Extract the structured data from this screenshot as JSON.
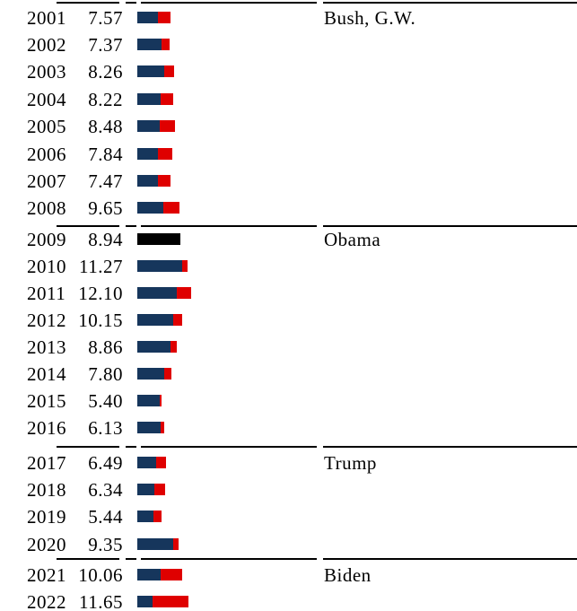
{
  "chart_data": {
    "type": "bar",
    "orientation": "horizontal",
    "title": "",
    "xlabel": "",
    "ylabel": "",
    "legend": "none",
    "grid": "off",
    "value_range_estimate": [
      0,
      12.1
    ],
    "categories": [
      "2001",
      "2002",
      "2003",
      "2004",
      "2005",
      "2006",
      "2007",
      "2008",
      "2009",
      "2010",
      "2011",
      "2012",
      "2013",
      "2014",
      "2015",
      "2016",
      "2017",
      "2018",
      "2019",
      "2020",
      "2021",
      "2022"
    ],
    "totals": [
      7.57,
      7.37,
      8.26,
      8.22,
      8.48,
      7.84,
      7.47,
      9.65,
      8.94,
      11.27,
      12.1,
      10.15,
      8.86,
      7.8,
      5.4,
      6.13,
      6.49,
      6.34,
      5.44,
      9.35,
      10.06,
      11.65
    ],
    "rows": [
      {
        "year": "2001",
        "value": "7.57",
        "blue": 4.65,
        "red": 2.92,
        "president": "Bush, G.W."
      },
      {
        "year": "2002",
        "value": "7.37",
        "blue": 5.55,
        "red": 1.82
      },
      {
        "year": "2003",
        "value": "8.26",
        "blue": 6.05,
        "red": 2.21
      },
      {
        "year": "2004",
        "value": "8.22",
        "blue": 5.35,
        "red": 2.87
      },
      {
        "year": "2005",
        "value": "8.48",
        "blue": 5.0,
        "red": 3.48
      },
      {
        "year": "2006",
        "value": "7.84",
        "blue": 4.6,
        "red": 3.24
      },
      {
        "year": "2007",
        "value": "7.47",
        "blue": 4.65,
        "red": 2.82
      },
      {
        "year": "2008",
        "value": "9.65",
        "blue": 5.85,
        "red": 3.8
      },
      {
        "year": "2009",
        "value": "8.94",
        "black": 9.8,
        "president": "Obama"
      },
      {
        "year": "2010",
        "value": "11.27",
        "blue": 10.2,
        "red": 1.07
      },
      {
        "year": "2011",
        "value": "12.10",
        "blue": 8.95,
        "red": 3.15
      },
      {
        "year": "2012",
        "value": "10.15",
        "blue": 8.2,
        "red": 1.95
      },
      {
        "year": "2013",
        "value": "8.86",
        "blue": 7.4,
        "red": 1.46
      },
      {
        "year": "2014",
        "value": "7.80",
        "blue": 6.1,
        "red": 1.7
      },
      {
        "year": "2015",
        "value": "5.40",
        "blue": 5.15,
        "red": 0.25
      },
      {
        "year": "2016",
        "value": "6.13",
        "blue": 5.2,
        "red": 0.93
      },
      {
        "year": "2017",
        "value": "6.49",
        "blue": 4.25,
        "red": 2.24,
        "president": "Trump"
      },
      {
        "year": "2018",
        "value": "6.34",
        "blue": 3.75,
        "red": 2.59
      },
      {
        "year": "2019",
        "value": "5.44",
        "blue": 3.6,
        "red": 1.84
      },
      {
        "year": "2020",
        "value": "9.35",
        "blue": 8.2,
        "red": 1.15
      },
      {
        "year": "2021",
        "value": "10.06",
        "blue": 5.25,
        "red": 4.81,
        "president": "Biden"
      },
      {
        "year": "2022",
        "value": "11.65",
        "blue": 3.45,
        "red": 8.2
      }
    ],
    "presidents": [
      {
        "label": "Bush, G.W.",
        "start_year": "2001"
      },
      {
        "label": "Obama",
        "start_year": "2009"
      },
      {
        "label": "Trump",
        "start_year": "2017"
      },
      {
        "label": "Biden",
        "start_year": "2021"
      }
    ],
    "colors": {
      "blue_segment": "#16365C",
      "red_segment": "#DF0000",
      "black_segment": "#000000",
      "divider_line": "#000000",
      "text": "#000000"
    }
  }
}
